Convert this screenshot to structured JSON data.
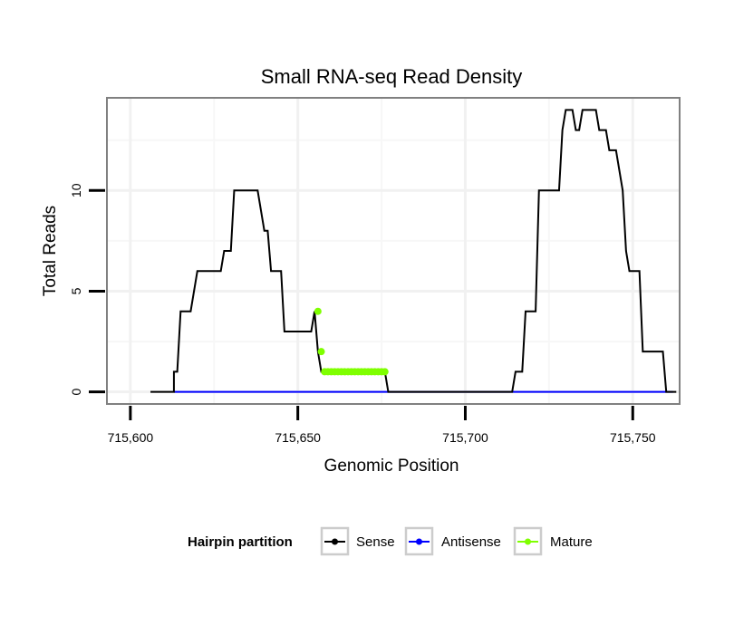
{
  "chart_data": {
    "type": "line",
    "title": "Small RNA-seq Read Density",
    "xlabel": "Genomic Position",
    "ylabel": "Total Reads",
    "xlim": [
      715593,
      715764
    ],
    "ylim": [
      -0.6,
      14.6
    ],
    "x_ticks": [
      715600,
      715650,
      715700,
      715750
    ],
    "x_tick_labels": [
      "715,600",
      "715,650",
      "715,700",
      "715,750"
    ],
    "y_ticks": [
      0,
      5,
      10
    ],
    "y_tick_labels": [
      "0",
      "5",
      "10"
    ],
    "grid": true,
    "legend": {
      "title": "Hairpin partition",
      "position": "bottom",
      "entries": [
        {
          "name": "Sense",
          "color": "#000000"
        },
        {
          "name": "Antisense",
          "color": "#0000ff"
        },
        {
          "name": "Mature",
          "color": "#7fff00"
        }
      ]
    },
    "series": [
      {
        "name": "Sense",
        "color": "#000000",
        "style": "step-line",
        "points": [
          [
            715606,
            0
          ],
          [
            715613,
            0
          ],
          [
            715613,
            1
          ],
          [
            715614,
            1
          ],
          [
            715615,
            4
          ],
          [
            715618,
            4
          ],
          [
            715620,
            6
          ],
          [
            715627,
            6
          ],
          [
            715628,
            7
          ],
          [
            715630,
            7
          ],
          [
            715631,
            10
          ],
          [
            715638,
            10
          ],
          [
            715640,
            8
          ],
          [
            715641,
            8
          ],
          [
            715642,
            6
          ],
          [
            715645,
            6
          ],
          [
            715646,
            3
          ],
          [
            715653,
            3
          ],
          [
            715654,
            3
          ],
          [
            715655,
            4
          ],
          [
            715656,
            2
          ],
          [
            715657,
            1
          ],
          [
            715676,
            1
          ],
          [
            715677,
            0
          ],
          [
            715714,
            0
          ],
          [
            715715,
            1
          ],
          [
            715717,
            1
          ],
          [
            715718,
            4
          ],
          [
            715721,
            4
          ],
          [
            715722,
            10
          ],
          [
            715728,
            10
          ],
          [
            715729,
            13
          ],
          [
            715730,
            14
          ],
          [
            715732,
            14
          ],
          [
            715733,
            13
          ],
          [
            715734,
            13
          ],
          [
            715735,
            14
          ],
          [
            715739,
            14
          ],
          [
            715740,
            13
          ],
          [
            715742,
            13
          ],
          [
            715743,
            12
          ],
          [
            715745,
            12
          ],
          [
            715746,
            11
          ],
          [
            715747,
            10
          ],
          [
            715748,
            7
          ],
          [
            715749,
            6
          ],
          [
            715752,
            6
          ],
          [
            715753,
            2
          ],
          [
            715759,
            2
          ],
          [
            715760,
            0
          ],
          [
            715763,
            0
          ]
        ]
      },
      {
        "name": "Antisense",
        "color": "#0000ff",
        "style": "line",
        "points": [
          [
            715613,
            0
          ],
          [
            715762,
            0
          ]
        ]
      },
      {
        "name": "Mature",
        "color": "#7fff00",
        "style": "points",
        "points": [
          [
            715656,
            4
          ],
          [
            715657,
            2
          ],
          [
            715658,
            1
          ],
          [
            715659,
            1
          ],
          [
            715660,
            1
          ],
          [
            715661,
            1
          ],
          [
            715662,
            1
          ],
          [
            715663,
            1
          ],
          [
            715664,
            1
          ],
          [
            715665,
            1
          ],
          [
            715666,
            1
          ],
          [
            715667,
            1
          ],
          [
            715668,
            1
          ],
          [
            715669,
            1
          ],
          [
            715670,
            1
          ],
          [
            715671,
            1
          ],
          [
            715672,
            1
          ],
          [
            715673,
            1
          ],
          [
            715674,
            1
          ],
          [
            715675,
            1
          ],
          [
            715676,
            1
          ]
        ]
      }
    ]
  }
}
